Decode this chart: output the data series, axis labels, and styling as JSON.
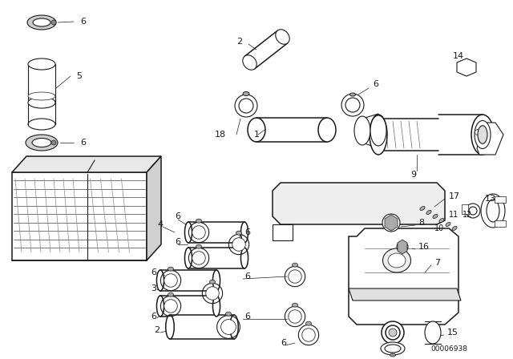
{
  "bg_color": "#ffffff",
  "line_color": "#1a1a1a",
  "fig_width": 6.4,
  "fig_height": 4.48,
  "dpi": 100,
  "doc_number": "00006938"
}
